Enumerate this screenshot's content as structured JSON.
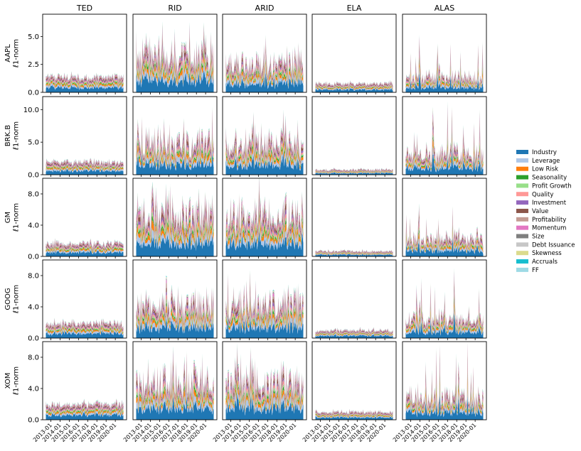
{
  "chart_data": {
    "type": "area",
    "stacked": true,
    "methods": [
      "TED",
      "RID",
      "ARID",
      "ELA",
      "ALAS"
    ],
    "tickers": [
      "AAPL",
      "BRK.B",
      "GM",
      "GOOG",
      "XOM"
    ],
    "ylabel_suffix": "ℓ1-norm",
    "x_ticks": [
      "2013-01",
      "2014-01",
      "2015-01",
      "2016-01",
      "2017-01",
      "2018-01",
      "2019-01",
      "2020-01"
    ],
    "x_range": [
      "2012-06",
      "2020-12"
    ],
    "rows": [
      {
        "ticker": "AAPL",
        "ylim": [
          0,
          7.0
        ],
        "yticks": [
          0.0,
          2.5,
          5.0
        ],
        "ytick_labels": [
          "0.0",
          "2.5",
          "5.0"
        ],
        "mean_totals": {
          "TED": 1.4,
          "RID": 3.5,
          "ARID": 2.6,
          "ELA": 0.8,
          "ALAS": 1.4
        }
      },
      {
        "ticker": "BRK.B",
        "ylim": [
          0,
          12.0
        ],
        "yticks": [
          0.0,
          5.0,
          10.0
        ],
        "ytick_labels": [
          "0.0",
          "5.0",
          "10.0"
        ],
        "mean_totals": {
          "TED": 2.0,
          "RID": 5.0,
          "ARID": 5.0,
          "ELA": 0.8,
          "ALAS": 3.5
        }
      },
      {
        "ticker": "GM",
        "ylim": [
          0,
          10.0
        ],
        "yticks": [
          0.0,
          4.0,
          8.0
        ],
        "ytick_labels": [
          "0.0",
          "4.0",
          "8.0"
        ],
        "mean_totals": {
          "TED": 1.7,
          "RID": 5.5,
          "ARID": 5.3,
          "ELA": 0.7,
          "ALAS": 2.4
        }
      },
      {
        "ticker": "GOOG",
        "ylim": [
          0,
          10.0
        ],
        "yticks": [
          0.0,
          4.0,
          8.0
        ],
        "ytick_labels": [
          "0.0",
          "4.0",
          "8.0"
        ],
        "mean_totals": {
          "TED": 1.9,
          "RID": 4.3,
          "ARID": 4.5,
          "ELA": 1.0,
          "ALAS": 2.5
        }
      },
      {
        "ticker": "XOM",
        "ylim": [
          0,
          10.0
        ],
        "yticks": [
          0.0,
          4.0,
          8.0
        ],
        "ytick_labels": [
          "0.0",
          "4.0",
          "8.0"
        ],
        "mean_totals": {
          "TED": 2.1,
          "RID": 4.8,
          "ARID": 4.8,
          "ELA": 1.0,
          "ALAS": 3.0
        }
      }
    ],
    "factors": [
      {
        "name": "Industry",
        "color": "#1f77b4",
        "share": 0.3
      },
      {
        "name": "Leverage",
        "color": "#aec7e8",
        "share": 0.12
      },
      {
        "name": "Low Risk",
        "color": "#ff7f0e",
        "share": 0.09
      },
      {
        "name": "Seasonality",
        "color": "#2ca02c",
        "share": 0.05
      },
      {
        "name": "Profit Growth",
        "color": "#98df8a",
        "share": 0.05
      },
      {
        "name": "Quality",
        "color": "#ff9896",
        "share": 0.07
      },
      {
        "name": "Investment",
        "color": "#9467bd",
        "share": 0.06
      },
      {
        "name": "Value",
        "color": "#8c564b",
        "share": 0.08
      },
      {
        "name": "Profitability",
        "color": "#c49c94",
        "share": 0.06
      },
      {
        "name": "Momentum",
        "color": "#e377c2",
        "share": 0.05
      },
      {
        "name": "Size",
        "color": "#7f7f7f",
        "share": 0.02
      },
      {
        "name": "Debt Issuance",
        "color": "#c7c7c7",
        "share": 0.02
      },
      {
        "name": "Skewness",
        "color": "#dbdb8d",
        "share": 0.015
      },
      {
        "name": "Accruals",
        "color": "#17becf",
        "share": 0.01
      },
      {
        "name": "FF",
        "color": "#9edae5",
        "share": 0.005
      }
    ]
  }
}
